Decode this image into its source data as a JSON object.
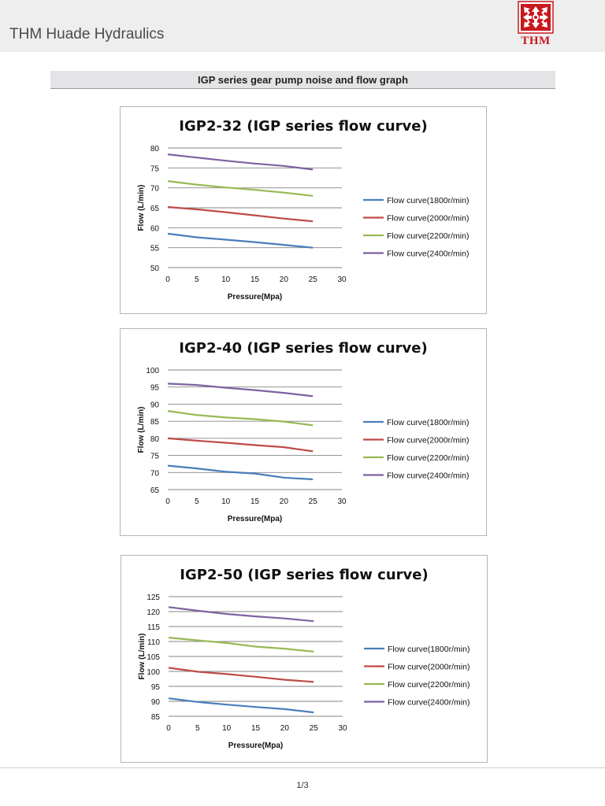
{
  "header": {
    "title": "THM Huade Hydraulics",
    "logo_text": "THM",
    "logo_colors": {
      "primary": "#c8171e",
      "secondary": "#ffffff"
    }
  },
  "section": {
    "title": "IGP series gear pump noise and flow graph"
  },
  "footer": {
    "page": "1/3"
  },
  "colors": {
    "series": [
      "#4a7ebb",
      "#be4b48",
      "#98b954",
      "#7e62a1"
    ],
    "grid": "#868686"
  },
  "chart_data": [
    {
      "type": "line",
      "title": "IGP2-32 (IGP series flow curve)",
      "xlabel": "Pressure(Mpa)",
      "ylabel": "Flow  (L/min)",
      "x_ticks": [
        0,
        5,
        10,
        15,
        20,
        25,
        30
      ],
      "y_ticks": [
        50,
        55,
        60,
        65,
        70,
        75,
        80
      ],
      "xlim": [
        0,
        30
      ],
      "ylim": [
        50,
        80
      ],
      "grid": true,
      "legend": "right",
      "x": [
        0,
        5,
        10,
        15,
        20,
        25
      ],
      "series": [
        {
          "name": "Flow curve(1800r/min)",
          "values": [
            58.5,
            57.6,
            57.0,
            56.4,
            55.7,
            55.0
          ]
        },
        {
          "name": "Flow curve(2000r/min)",
          "values": [
            65.2,
            64.6,
            63.9,
            63.1,
            62.3,
            61.6
          ]
        },
        {
          "name": "Flow curve(2200r/min)",
          "values": [
            71.7,
            70.8,
            70.1,
            69.5,
            68.8,
            68.0
          ]
        },
        {
          "name": "Flow curve(2400r/min)",
          "values": [
            78.4,
            77.6,
            76.8,
            76.1,
            75.5,
            74.6
          ]
        }
      ]
    },
    {
      "type": "line",
      "title": "IGP2-40 (IGP series flow curve)",
      "xlabel": "Pressure(Mpa)",
      "ylabel": "Flow  (L/min)",
      "x_ticks": [
        0,
        5,
        10,
        15,
        20,
        25,
        30
      ],
      "y_ticks": [
        65,
        70,
        75,
        80,
        85,
        90,
        95,
        100
      ],
      "xlim": [
        0,
        30
      ],
      "ylim": [
        65,
        100
      ],
      "grid": true,
      "legend": "right",
      "x": [
        0,
        5,
        10,
        15,
        20,
        25
      ],
      "series": [
        {
          "name": "Flow curve(1800r/min)",
          "values": [
            72.0,
            71.2,
            70.2,
            69.7,
            68.5,
            68.0
          ]
        },
        {
          "name": "Flow curve(2000r/min)",
          "values": [
            80.0,
            79.3,
            78.7,
            78.0,
            77.4,
            76.2
          ]
        },
        {
          "name": "Flow curve(2200r/min)",
          "values": [
            88.0,
            86.8,
            86.1,
            85.6,
            84.9,
            83.8
          ]
        },
        {
          "name": "Flow curve(2400r/min)",
          "values": [
            96.0,
            95.6,
            94.8,
            94.1,
            93.3,
            92.3
          ]
        }
      ]
    },
    {
      "type": "line",
      "title": "IGP2-50 (IGP series flow curve)",
      "xlabel": "Pressure(Mpa)",
      "ylabel": "Flow  (L/min)",
      "x_ticks": [
        0,
        5,
        10,
        15,
        20,
        25,
        30
      ],
      "y_ticks": [
        85,
        90,
        95,
        100,
        105,
        110,
        115,
        120,
        125
      ],
      "xlim": [
        0,
        30
      ],
      "ylim": [
        85,
        125
      ],
      "grid": true,
      "legend": "right",
      "x": [
        0,
        5,
        10,
        15,
        20,
        25
      ],
      "series": [
        {
          "name": "Flow curve(1800r/min)",
          "values": [
            91.0,
            89.8,
            88.9,
            88.1,
            87.4,
            86.3
          ]
        },
        {
          "name": "Flow curve(2000r/min)",
          "values": [
            101.2,
            99.9,
            99.1,
            98.2,
            97.2,
            96.5
          ]
        },
        {
          "name": "Flow curve(2200r/min)",
          "values": [
            111.3,
            110.4,
            109.5,
            108.3,
            107.6,
            106.6
          ]
        },
        {
          "name": "Flow curve(2400r/min)",
          "values": [
            121.5,
            120.3,
            119.2,
            118.4,
            117.7,
            116.8
          ]
        }
      ]
    }
  ]
}
